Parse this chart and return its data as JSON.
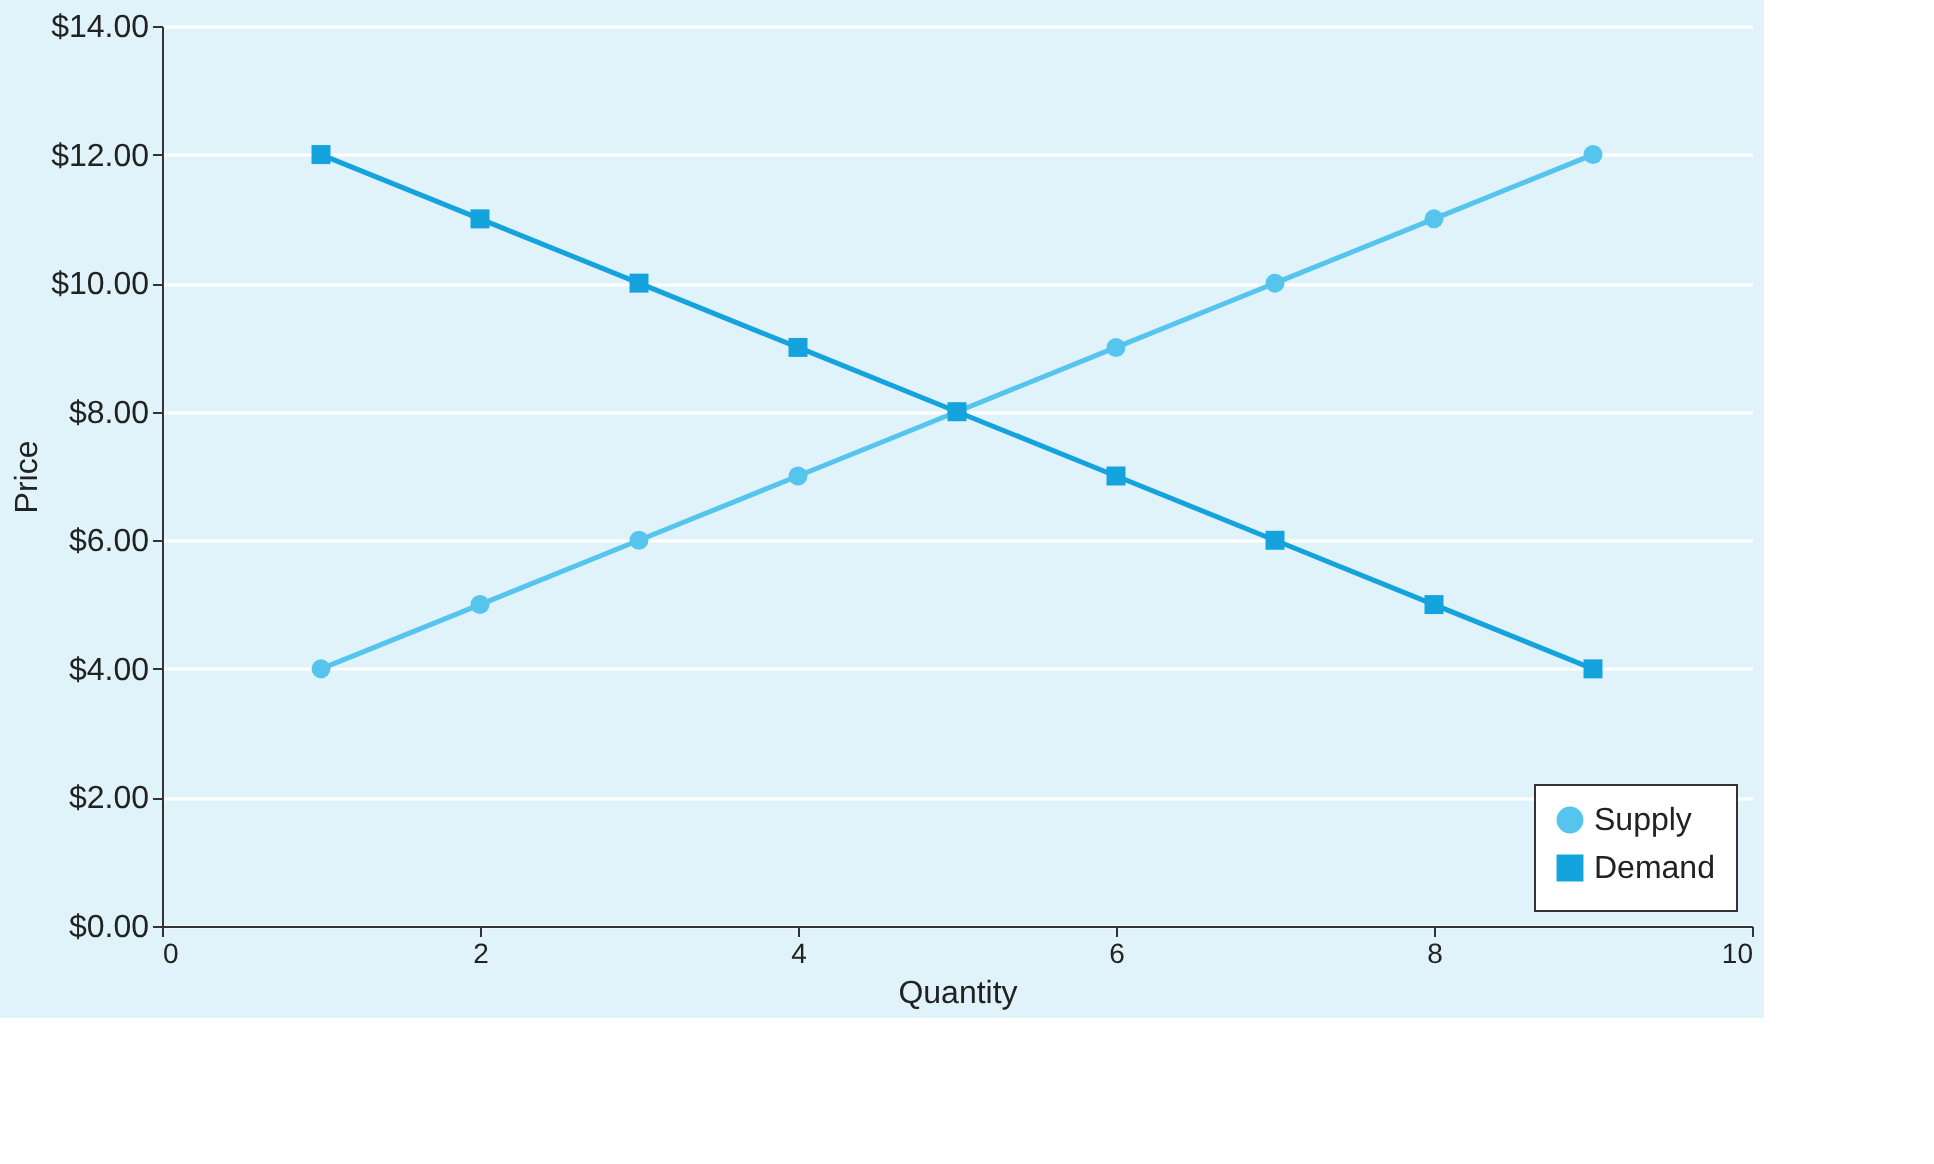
{
  "chart_data": {
    "type": "line",
    "xlabel": "Quantity",
    "ylabel": "Price",
    "x": [
      1,
      2,
      3,
      4,
      5,
      6,
      7,
      8,
      9
    ],
    "series": [
      {
        "name": "Supply",
        "color": "#56c5ee",
        "marker": "circle",
        "values": [
          4,
          5,
          6,
          7,
          8,
          9,
          10,
          11,
          12
        ]
      },
      {
        "name": "Demand",
        "color": "#14a3dc",
        "marker": "square",
        "values": [
          12,
          11,
          10,
          9,
          8,
          7,
          6,
          5,
          4
        ]
      }
    ],
    "xlim": [
      0,
      10
    ],
    "xticks": [
      0,
      2,
      4,
      6,
      8,
      10
    ],
    "ylim": [
      0,
      14
    ],
    "yticks": [
      {
        "value": 0,
        "label": "$0.00"
      },
      {
        "value": 2,
        "label": "$2.00"
      },
      {
        "value": 4,
        "label": "$4.00"
      },
      {
        "value": 6,
        "label": "$6.00"
      },
      {
        "value": 8,
        "label": "$8.00"
      },
      {
        "value": 10,
        "label": "$10.00"
      },
      {
        "value": 12,
        "label": "$12.00"
      },
      {
        "value": 14,
        "label": "$14.00"
      }
    ],
    "grid": "y",
    "legend": "bottom right",
    "line_style": "solid"
  }
}
